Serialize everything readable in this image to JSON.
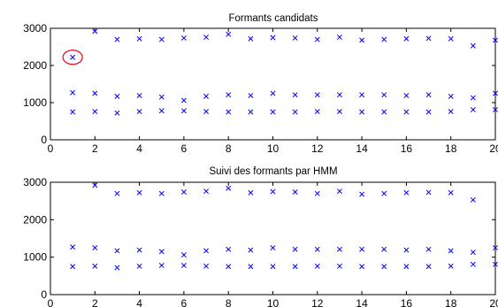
{
  "colors": {
    "marker": "#0000ff",
    "highlight": "#e8001c",
    "axes": "#000000",
    "background": "#ffffff"
  },
  "chart_data": [
    {
      "type": "scatter",
      "title": "Formants candidats",
      "xlim": [
        0,
        20
      ],
      "ylim": [
        0,
        3000
      ],
      "xticks": [
        "0",
        "2",
        "4",
        "6",
        "8",
        "10",
        "12",
        "14",
        "16",
        "18",
        "20"
      ],
      "yticks": [
        "0",
        "1000",
        "2000",
        "3000"
      ],
      "marker": "x",
      "grid": false,
      "series": [
        {
          "x": [
            1,
            2,
            3,
            4,
            5,
            6,
            7,
            8,
            9,
            10,
            11,
            12,
            13,
            14,
            15,
            16,
            17,
            18,
            19,
            20
          ],
          "y": [
            750,
            760,
            720,
            760,
            780,
            780,
            760,
            750,
            750,
            750,
            750,
            760,
            760,
            750,
            750,
            750,
            750,
            760,
            810,
            810
          ]
        },
        {
          "x": [
            1,
            2,
            3,
            4,
            5,
            6,
            7,
            8,
            9,
            10,
            11,
            12,
            13,
            14,
            15,
            16,
            17,
            18,
            19,
            20
          ],
          "y": [
            1270,
            1250,
            1170,
            1190,
            1150,
            1060,
            1170,
            1210,
            1190,
            1250,
            1210,
            1210,
            1210,
            1210,
            1210,
            1190,
            1210,
            1170,
            1130,
            1250
          ]
        },
        {
          "x": [
            1,
            2,
            3,
            4,
            5,
            6,
            7,
            8,
            9,
            10,
            11,
            12,
            13,
            14,
            15,
            16,
            17,
            18,
            19,
            20
          ],
          "y": [
            2220,
            2920,
            2700,
            2720,
            2700,
            2740,
            2760,
            2840,
            2720,
            2750,
            2740,
            2700,
            2760,
            2680,
            2700,
            2720,
            2730,
            2720,
            2530,
            2680
          ]
        }
      ],
      "annotation": {
        "shape": "circle",
        "x": 1,
        "y": 2220
      }
    },
    {
      "type": "scatter",
      "title": "Suivi des formants par HMM",
      "xlim": [
        0,
        20
      ],
      "ylim": [
        0,
        3000
      ],
      "xticks": [
        "0",
        "2",
        "4",
        "6",
        "8",
        "10",
        "12",
        "14",
        "16",
        "18",
        "20"
      ],
      "yticks": [
        "0",
        "1000",
        "2000",
        "3000"
      ],
      "marker": "x",
      "grid": false,
      "series": [
        {
          "x": [
            1,
            2,
            3,
            4,
            5,
            6,
            7,
            8,
            9,
            10,
            11,
            12,
            13,
            14,
            15,
            16,
            17,
            18,
            19,
            20
          ],
          "y": [
            750,
            760,
            720,
            760,
            780,
            780,
            760,
            750,
            750,
            750,
            750,
            760,
            760,
            750,
            750,
            750,
            750,
            760,
            810,
            810
          ]
        },
        {
          "x": [
            1,
            2,
            3,
            4,
            5,
            6,
            7,
            8,
            9,
            10,
            11,
            12,
            13,
            14,
            15,
            16,
            17,
            18,
            19,
            20
          ],
          "y": [
            1270,
            1250,
            1170,
            1190,
            1150,
            1060,
            1170,
            1210,
            1190,
            1250,
            1210,
            1210,
            1210,
            1210,
            1210,
            1190,
            1210,
            1170,
            1130,
            1250
          ]
        },
        {
          "x": [
            2,
            3,
            4,
            5,
            6,
            7,
            8,
            9,
            10,
            11,
            12,
            13,
            14,
            15,
            16,
            17,
            18,
            19
          ],
          "y": [
            2920,
            2700,
            2720,
            2700,
            2740,
            2760,
            2840,
            2720,
            2750,
            2740,
            2700,
            2760,
            2680,
            2700,
            2720,
            2730,
            2720,
            2530
          ]
        }
      ]
    }
  ]
}
